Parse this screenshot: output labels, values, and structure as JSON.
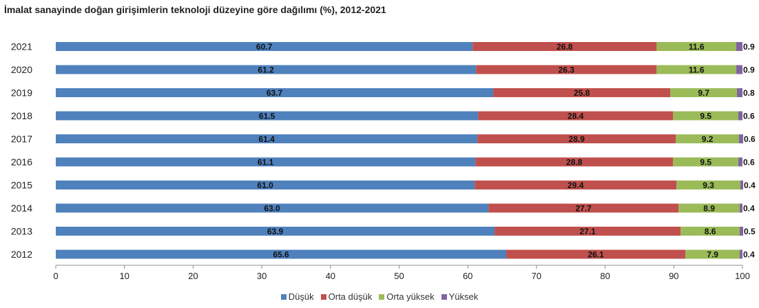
{
  "chart_data": {
    "type": "bar",
    "orientation": "horizontal",
    "stacked": true,
    "title": "İmalat sanayinde doğan girişimlerin teknoloji düzeyine göre dağılımı (%), 2012-2021",
    "categories": [
      "2021",
      "2020",
      "2019",
      "2018",
      "2017",
      "2016",
      "2015",
      "2014",
      "2013",
      "2012"
    ],
    "series": [
      {
        "name": "Düşük",
        "color": "#4f81bd",
        "values": [
          60.7,
          61.2,
          63.7,
          61.5,
          61.4,
          61.1,
          61.0,
          63.0,
          63.9,
          65.6
        ],
        "labels": [
          "60.7",
          "61.2",
          "63.7",
          "61.5",
          "61.4",
          "61.1",
          "61.0",
          "63.0",
          "63.9",
          "65.6"
        ]
      },
      {
        "name": "Orta düşük",
        "color": "#c0504d",
        "values": [
          26.8,
          26.3,
          25.8,
          28.4,
          28.9,
          28.8,
          29.4,
          27.7,
          27.1,
          26.1
        ],
        "labels": [
          "26.8",
          "26.3",
          "25.8",
          "28.4",
          "28.9",
          "28.8",
          "29.4",
          "27.7",
          "27.1",
          "26.1"
        ]
      },
      {
        "name": "Orta yüksek",
        "color": "#9bbb59",
        "values": [
          11.6,
          11.6,
          9.7,
          9.5,
          9.2,
          9.5,
          9.3,
          8.9,
          8.6,
          7.9
        ],
        "labels": [
          "11.6",
          "11.6",
          "9.7",
          "9.5",
          "9.2",
          "9.5",
          "9.3",
          "8.9",
          "8.6",
          "7.9"
        ]
      },
      {
        "name": "Yüksek",
        "color": "#8064a2",
        "values": [
          0.9,
          0.9,
          0.8,
          0.6,
          0.6,
          0.6,
          0.4,
          0.4,
          0.5,
          0.4
        ],
        "labels": [
          "0.9",
          "0.9",
          "0.8",
          "0.6",
          "0.6",
          "0.6",
          "0.4",
          "0.4",
          "0.5",
          "0.4"
        ]
      }
    ],
    "xlim": [
      0,
      100
    ],
    "xticks": [
      "0",
      "10",
      "20",
      "30",
      "40",
      "50",
      "60",
      "70",
      "80",
      "90",
      "100"
    ],
    "xlabel": "",
    "ylabel": "",
    "grid": false,
    "legend": "bottom"
  }
}
